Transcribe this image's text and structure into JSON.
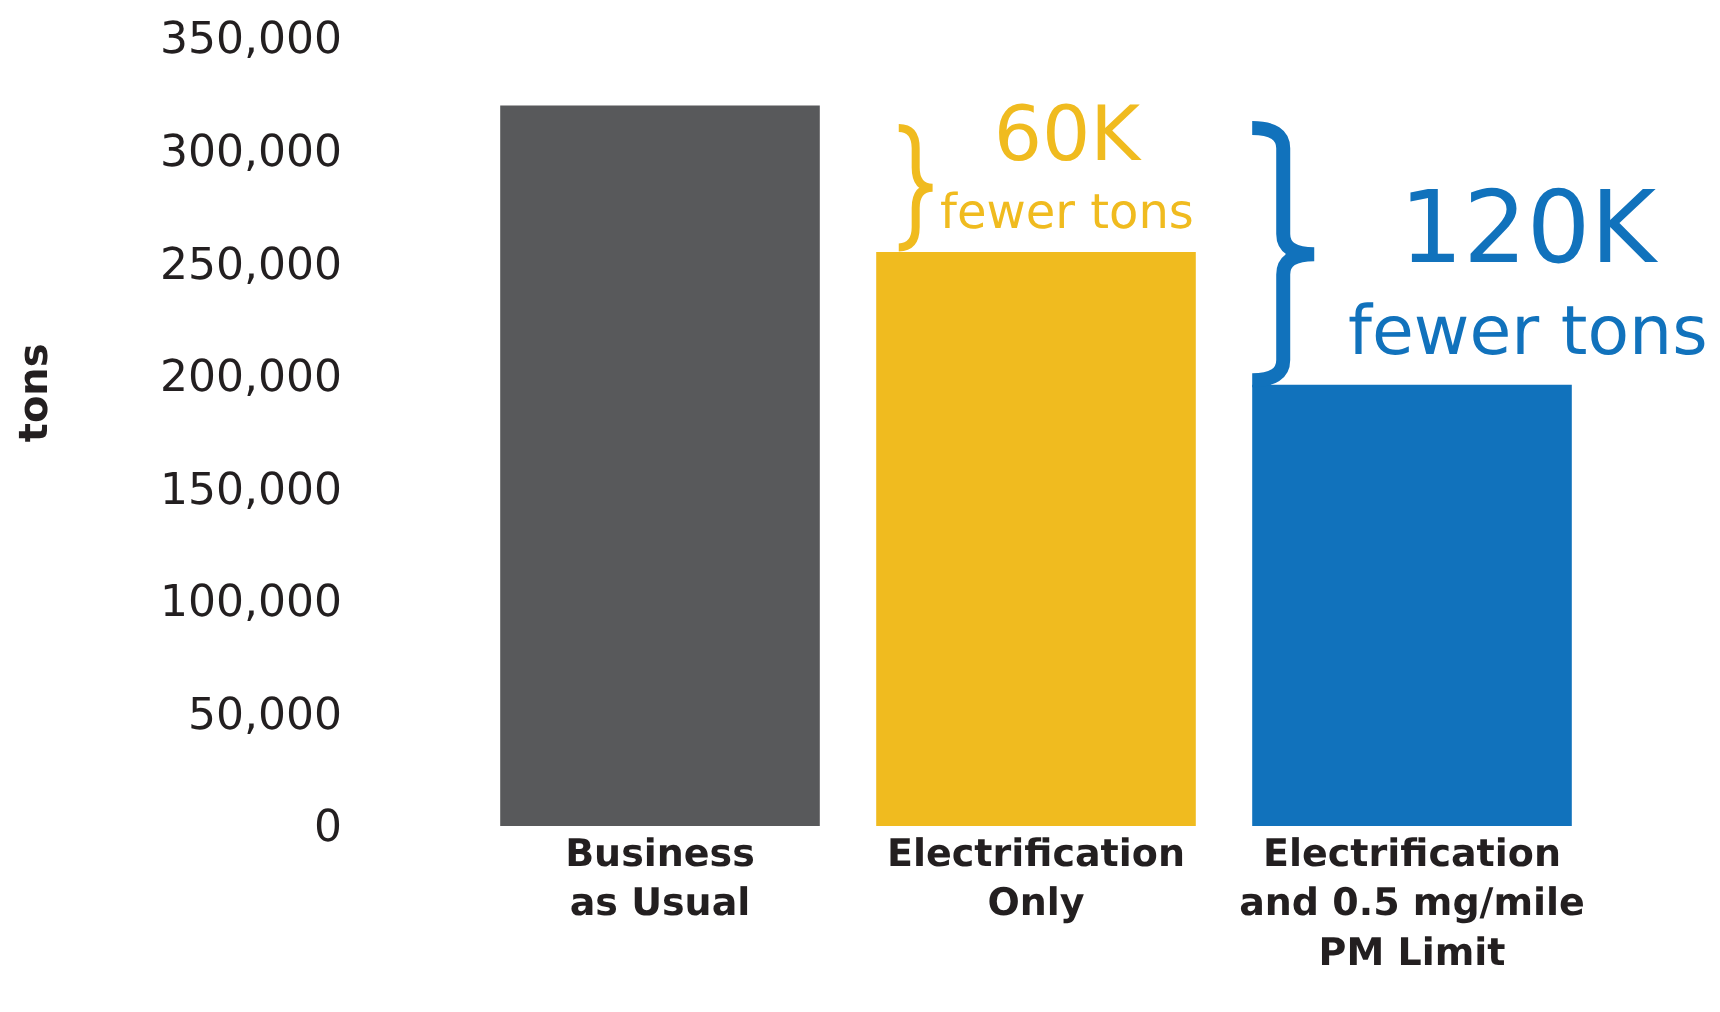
{
  "chart_data": {
    "type": "bar",
    "ylabel": "tons",
    "categories": [
      "Business\nas Usual",
      "Electrification\nOnly",
      "Electrification\nand 0.5 mg/mile\nPM Limit"
    ],
    "values": [
      320000,
      255000,
      196000
    ],
    "colors": [
      "#58595b",
      "#f0bb1f",
      "#1172bc"
    ],
    "ylim": [
      0,
      350000
    ],
    "yticks": [
      {
        "value": 0,
        "label": "0"
      },
      {
        "value": 50000,
        "label": "50,000"
      },
      {
        "value": 100000,
        "label": "100,000"
      },
      {
        "value": 150000,
        "label": "150,000"
      },
      {
        "value": 200000,
        "label": "200,000"
      },
      {
        "value": 250000,
        "label": "250,000"
      },
      {
        "value": 300000,
        "label": "300,000"
      },
      {
        "value": 350000,
        "label": "350,000"
      }
    ],
    "annotations": [
      {
        "text": "60K\nfewer tons",
        "x": "Electrification\nOnly",
        "y": 255000
      },
      {
        "text": "120K\nfewer tons",
        "x": "Electrification\nand 0.5 mg/mile\nPM Limit",
        "y": 196000
      }
    ]
  }
}
